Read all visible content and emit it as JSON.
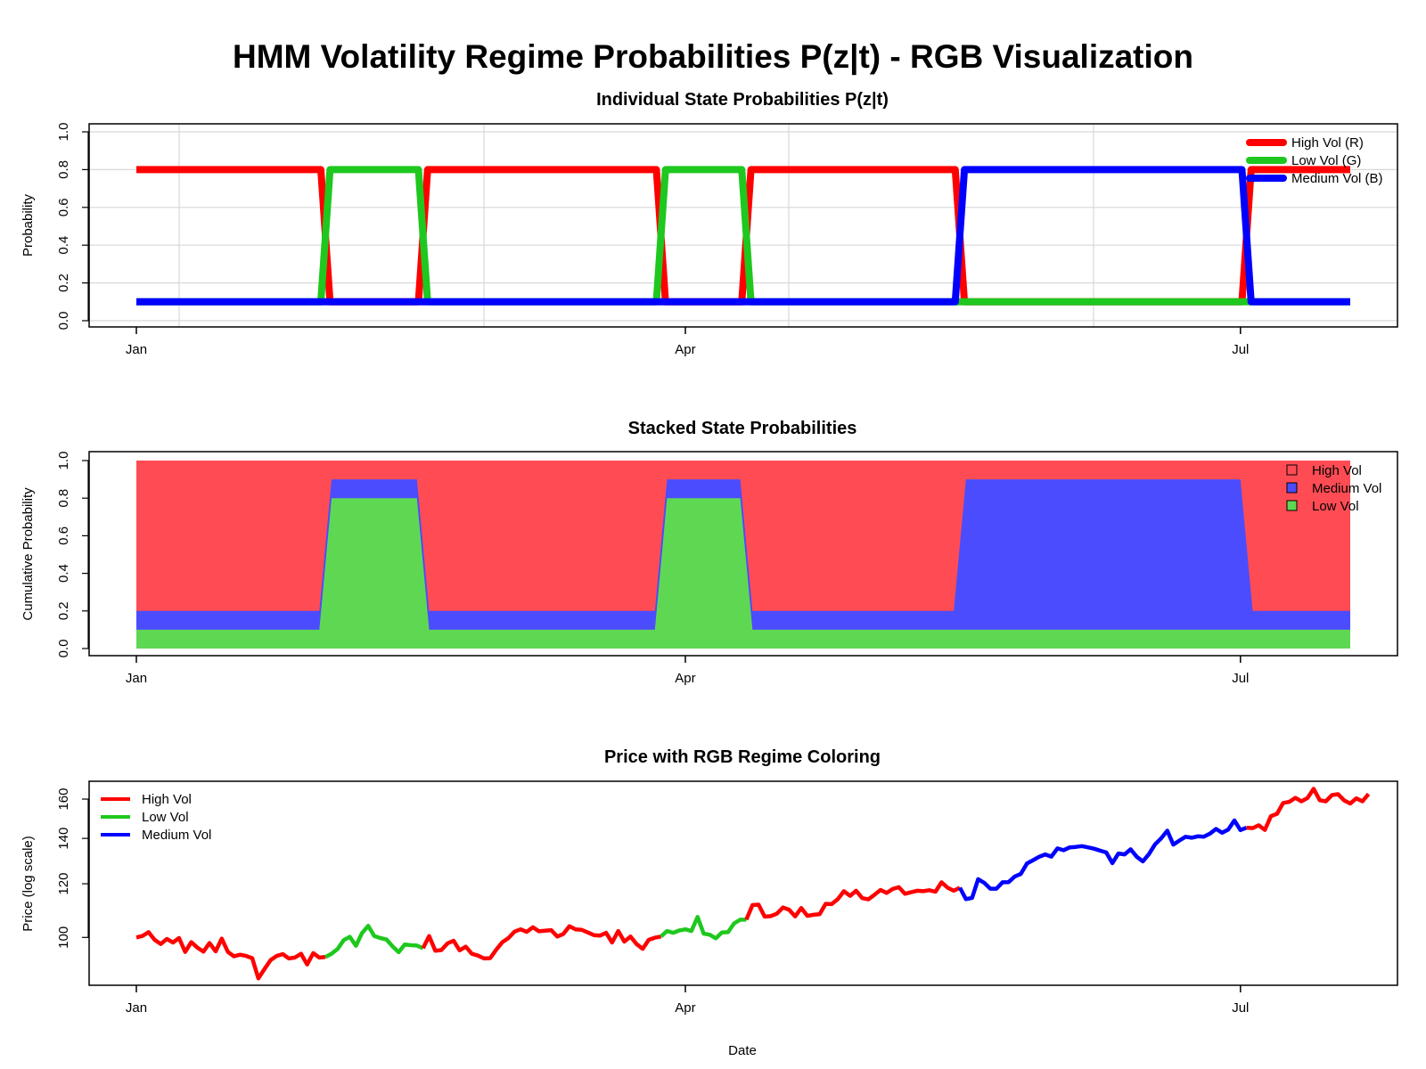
{
  "figure": {
    "title": "HMM Volatility Regime Probabilities P(z|t) - RGB Visualization",
    "xlabel": "Date"
  },
  "chart_data": [
    {
      "type": "line",
      "title": "Individual State Probabilities P(z|t)",
      "xlabel": "",
      "ylabel": "Probability",
      "x_ticks": [
        "Jan",
        "Apr",
        "Jul"
      ],
      "x_tick_days": [
        0,
        90,
        181
      ],
      "x_range_days": [
        0,
        199
      ],
      "ylim": [
        0,
        1
      ],
      "y_ticks": [
        "0.0",
        "0.2",
        "0.4",
        "0.6",
        "0.8",
        "1.0"
      ],
      "grid": true,
      "legend_position": "top-right",
      "regimes": [
        {
          "state": "High Vol",
          "start_day": 0,
          "end_day": 31
        },
        {
          "state": "Low Vol",
          "start_day": 31,
          "end_day": 47
        },
        {
          "state": "High Vol",
          "start_day": 47,
          "end_day": 86
        },
        {
          "state": "Low Vol",
          "start_day": 86,
          "end_day": 100
        },
        {
          "state": "High Vol",
          "start_day": 100,
          "end_day": 135
        },
        {
          "state": "Medium Vol",
          "start_day": 135,
          "end_day": 182
        },
        {
          "state": "High Vol",
          "start_day": 182,
          "end_day": 199
        }
      ],
      "series": [
        {
          "name": "High Vol (R)",
          "state": "High Vol",
          "color": "#FF0000",
          "active": 0.8,
          "inactive": 0.1
        },
        {
          "name": "Low Vol (G)",
          "state": "Low Vol",
          "color": "#1EC81E",
          "active": 0.8,
          "inactive": 0.1
        },
        {
          "name": "Medium Vol (B)",
          "state": "Medium Vol",
          "color": "#0000FF",
          "active": 0.8,
          "inactive": 0.1
        }
      ]
    },
    {
      "type": "area",
      "title": "Stacked State Probabilities",
      "xlabel": "",
      "ylabel": "Cumulative Probability",
      "x_ticks": [
        "Jan",
        "Apr",
        "Jul"
      ],
      "ylim": [
        0,
        1
      ],
      "y_ticks": [
        "0.0",
        "0.2",
        "0.4",
        "0.6",
        "0.8",
        "1.0"
      ],
      "grid": false,
      "legend_position": "top-right",
      "stack_order": [
        "Low Vol",
        "Medium Vol",
        "High Vol"
      ],
      "series": [
        {
          "name": "High Vol",
          "state": "High Vol",
          "color": "#FF4C54"
        },
        {
          "name": "Medium Vol",
          "state": "Medium Vol",
          "color": "#4C4CFF"
        },
        {
          "name": "Low Vol",
          "state": "Low Vol",
          "color": "#5ED852"
        }
      ]
    },
    {
      "type": "line",
      "title": "Price with RGB Regime Coloring",
      "xlabel": "Date",
      "ylabel": "Price (log scale)",
      "x_ticks": [
        "Jan",
        "Apr",
        "Jul"
      ],
      "log_scale": true,
      "ylim": [
        85,
        170
      ],
      "y_ticks": [
        "100",
        "120",
        "140",
        "160"
      ],
      "y_tick_values": [
        100,
        120,
        140,
        160
      ],
      "grid": false,
      "legend_position": "top-left",
      "legend": [
        {
          "name": "High Vol",
          "color": "#FF0000"
        },
        {
          "name": "Low Vol",
          "color": "#1EC81E"
        },
        {
          "name": "Medium Vol",
          "color": "#0000FF"
        }
      ],
      "price_step_days": 1,
      "prices": [
        100,
        100.5,
        101.8,
        99.2,
        97.8,
        99.5,
        98.3,
        99.8,
        95.2,
        98.4,
        96.6,
        95.3,
        98.1,
        95.4,
        99.6,
        95.2,
        93.8,
        94.3,
        93.9,
        93.2,
        87.0,
        89.8,
        92.6,
        93.9,
        94.5,
        93.1,
        93.4,
        94.6,
        91.2,
        94.8,
        93.4,
        93.6,
        94.6,
        96.2,
        99.1,
        100.2,
        97.2,
        101.5,
        104.0,
        100.5,
        99.8,
        99.3,
        97.0,
        95.1,
        97.6,
        97.4,
        97.3,
        96.4,
        100.5,
        95.6,
        95.8,
        98.0,
        98.9,
        95.7,
        96.9,
        94.6,
        94.0,
        93.1,
        93.2,
        95.9,
        98.4,
        99.8,
        102.0,
        102.8,
        101.9,
        103.5,
        102.1,
        102.3,
        102.5,
        100.3,
        101.2,
        103.9,
        102.8,
        102.6,
        101.7,
        100.8,
        100.6,
        101.6,
        98.3,
        102.2,
        98.6,
        100.3,
        97.8,
        96.2,
        99.2,
        99.9,
        100.3,
        102.2,
        101.6,
        102.4,
        102.8,
        102.2,
        107.2,
        101.3,
        100.9,
        99.7,
        101.7,
        101.8,
        104.9,
        106.2,
        106.2,
        111.6,
        111.8,
        107.3,
        107.5,
        108.4,
        110.7,
        109.9,
        107.4,
        110.5,
        107.6,
        108.0,
        108.2,
        112.1,
        112.0,
        113.9,
        117.0,
        115.2,
        117.2,
        114.3,
        113.8,
        115.6,
        117.5,
        116.3,
        117.9,
        118.6,
        116.0,
        116.6,
        117.2,
        117.0,
        117.4,
        116.8,
        120.6,
        118.4,
        117.2,
        118.4,
        113.9,
        114.4,
        121.9,
        120.4,
        118.0,
        118.0,
        120.6,
        120.7,
        123.0,
        124.1,
        128.6,
        130.0,
        131.5,
        132.6,
        131.6,
        135.3,
        134.5,
        135.8,
        136.0,
        136.4,
        135.8,
        135.2,
        134.3,
        133.5,
        128.7,
        133.0,
        132.6,
        134.9,
        131.5,
        129.5,
        132.7,
        137.2,
        140.0,
        143.7,
        137.1,
        139.0,
        140.8,
        140.3,
        141.0,
        140.8,
        142.3,
        144.6,
        142.7,
        144.3,
        148.8,
        144.0,
        145.2,
        145.0,
        146.4,
        144.1,
        151.0,
        152.2,
        157.9,
        158.5,
        160.7,
        158.8,
        160.6,
        165.7,
        159.4,
        158.8,
        162.2,
        162.7,
        159.3,
        157.6,
        160.4,
        158.8,
        162.8
      ]
    }
  ]
}
